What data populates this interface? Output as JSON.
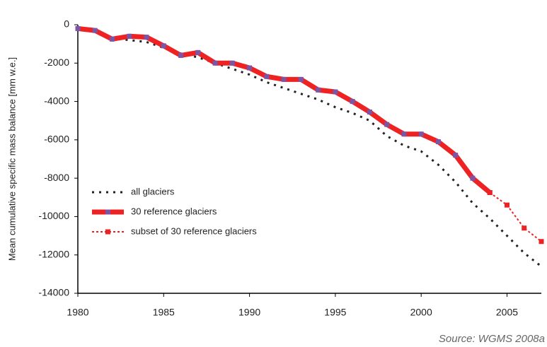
{
  "chart_data": {
    "type": "line",
    "y_label": "Mean cumulative specific mass balance [mm w.e.]",
    "source": "Source: WGMS 2008a",
    "x": [
      1980,
      1981,
      1982,
      1983,
      1984,
      1985,
      1986,
      1987,
      1988,
      1989,
      1990,
      1991,
      1992,
      1993,
      1994,
      1995,
      1996,
      1997,
      1998,
      1999,
      2000,
      2001,
      2002,
      2003,
      2004,
      2005,
      2006,
      2007
    ],
    "series": [
      {
        "name": "all glaciers",
        "color": "#222222",
        "style": "dotted",
        "values": [
          -200,
          -300,
          -700,
          -800,
          -900,
          -1200,
          -1500,
          -1700,
          -2000,
          -2300,
          -2600,
          -3000,
          -3300,
          -3600,
          -3900,
          -4300,
          -4600,
          -5000,
          -5800,
          -6300,
          -6600,
          -7300,
          -8200,
          -9300,
          -10100,
          -11000,
          -11900,
          -12600
        ]
      },
      {
        "name": "30 reference glaciers",
        "color": "#ee2222",
        "style": "solid",
        "marker_color": "#7a55a8",
        "values": [
          -200,
          -300,
          -750,
          -600,
          -650,
          -1100,
          -1600,
          -1450,
          -2000,
          -2000,
          -2250,
          -2700,
          -2850,
          -2850,
          -3400,
          -3500,
          -4000,
          -4550,
          -5200,
          -5700,
          -5700,
          -6100,
          -6800,
          -8000,
          -8750,
          null,
          null,
          null
        ]
      },
      {
        "name": "subset of 30 reference glaciers",
        "color": "#ee2222",
        "style": "dotted",
        "marker_color": "#ee2222",
        "values": [
          null,
          null,
          null,
          null,
          null,
          null,
          null,
          null,
          null,
          null,
          null,
          null,
          null,
          null,
          null,
          null,
          null,
          null,
          null,
          null,
          null,
          null,
          null,
          null,
          -8750,
          -9400,
          -10600,
          -11300
        ]
      }
    ],
    "xlim": [
      1980,
      2007
    ],
    "xticks": [
      1980,
      1985,
      1990,
      1995,
      2000,
      2005
    ],
    "ylim": [
      -14000,
      0
    ],
    "yticks": [
      0,
      -2000,
      -4000,
      -6000,
      -8000,
      -10000,
      -12000,
      -14000
    ],
    "grid": false,
    "legend": "lower left"
  }
}
